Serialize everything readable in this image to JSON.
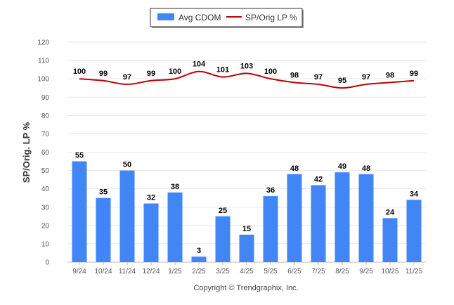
{
  "chart_data": {
    "type": "bar",
    "categories": [
      "9/24",
      "10/24",
      "11/24",
      "12/24",
      "1/25",
      "2/25",
      "3/25",
      "4/25",
      "5/25",
      "6/25",
      "7/25",
      "8/25",
      "9/25",
      "10/25",
      "11/25"
    ],
    "series": [
      {
        "name": "Avg CDOM",
        "type": "bar",
        "color": "#4285f4",
        "values": [
          55,
          35,
          50,
          32,
          38,
          3,
          25,
          15,
          36,
          48,
          42,
          49,
          48,
          24,
          34
        ]
      },
      {
        "name": "SP/Orig LP %",
        "type": "line",
        "color": "#c00000",
        "values": [
          100,
          99,
          97,
          99,
          100,
          104,
          101,
          103,
          100,
          98,
          97,
          95,
          97,
          98,
          99
        ]
      }
    ],
    "ylabel": "SP/Orig. LP %",
    "ylim": [
      0,
      120
    ],
    "yticks": [
      0,
      10,
      20,
      30,
      40,
      50,
      60,
      70,
      80,
      90,
      100,
      110,
      120
    ],
    "grid": true,
    "legend_position": "top-center"
  },
  "credit": "Copyright © Trendgraphix, Inc."
}
